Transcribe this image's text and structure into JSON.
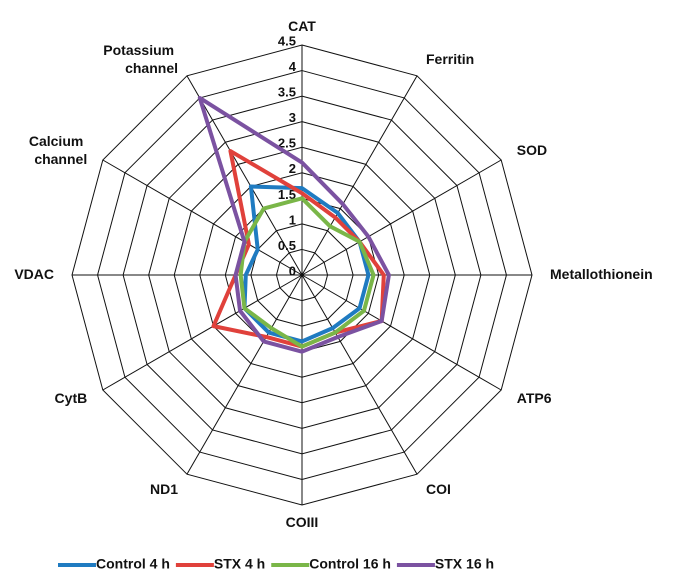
{
  "chart_data": {
    "type": "radar",
    "categories": [
      "CAT",
      "Ferritin",
      "SOD",
      "Metallothionein",
      "ATP6",
      "COI",
      "COIII",
      "ND1",
      "CytB",
      "VDAC",
      "Calcium channel",
      "Potassium channel"
    ],
    "series": [
      {
        "name": "Control 4 h",
        "color": "#1f7bc1",
        "values": [
          1.7,
          1.4,
          1.3,
          1.3,
          1.3,
          1.2,
          1.3,
          1.3,
          1.3,
          1.1,
          1.0,
          2.0
        ]
      },
      {
        "name": "STX 4 h",
        "color": "#e0413b",
        "values": [
          1.6,
          1.3,
          1.3,
          1.6,
          1.8,
          1.3,
          1.4,
          1.4,
          2.0,
          1.3,
          1.2,
          2.8
        ]
      },
      {
        "name": "Control 16 h",
        "color": "#7ab648",
        "values": [
          1.5,
          1.1,
          1.3,
          1.4,
          1.4,
          1.3,
          1.4,
          1.2,
          1.3,
          1.2,
          1.3,
          1.5
        ]
      },
      {
        "name": "STX 16 h",
        "color": "#7b52a1",
        "values": [
          2.2,
          1.6,
          1.5,
          1.7,
          1.8,
          1.4,
          1.5,
          1.5,
          1.4,
          1.3,
          1.3,
          4.0
        ]
      }
    ],
    "rlim": [
      0,
      4.5
    ],
    "rticks": [
      0,
      0.5,
      1,
      1.5,
      2,
      2.5,
      3,
      3.5,
      4,
      4.5
    ],
    "grid": true,
    "legend": "bottom"
  }
}
